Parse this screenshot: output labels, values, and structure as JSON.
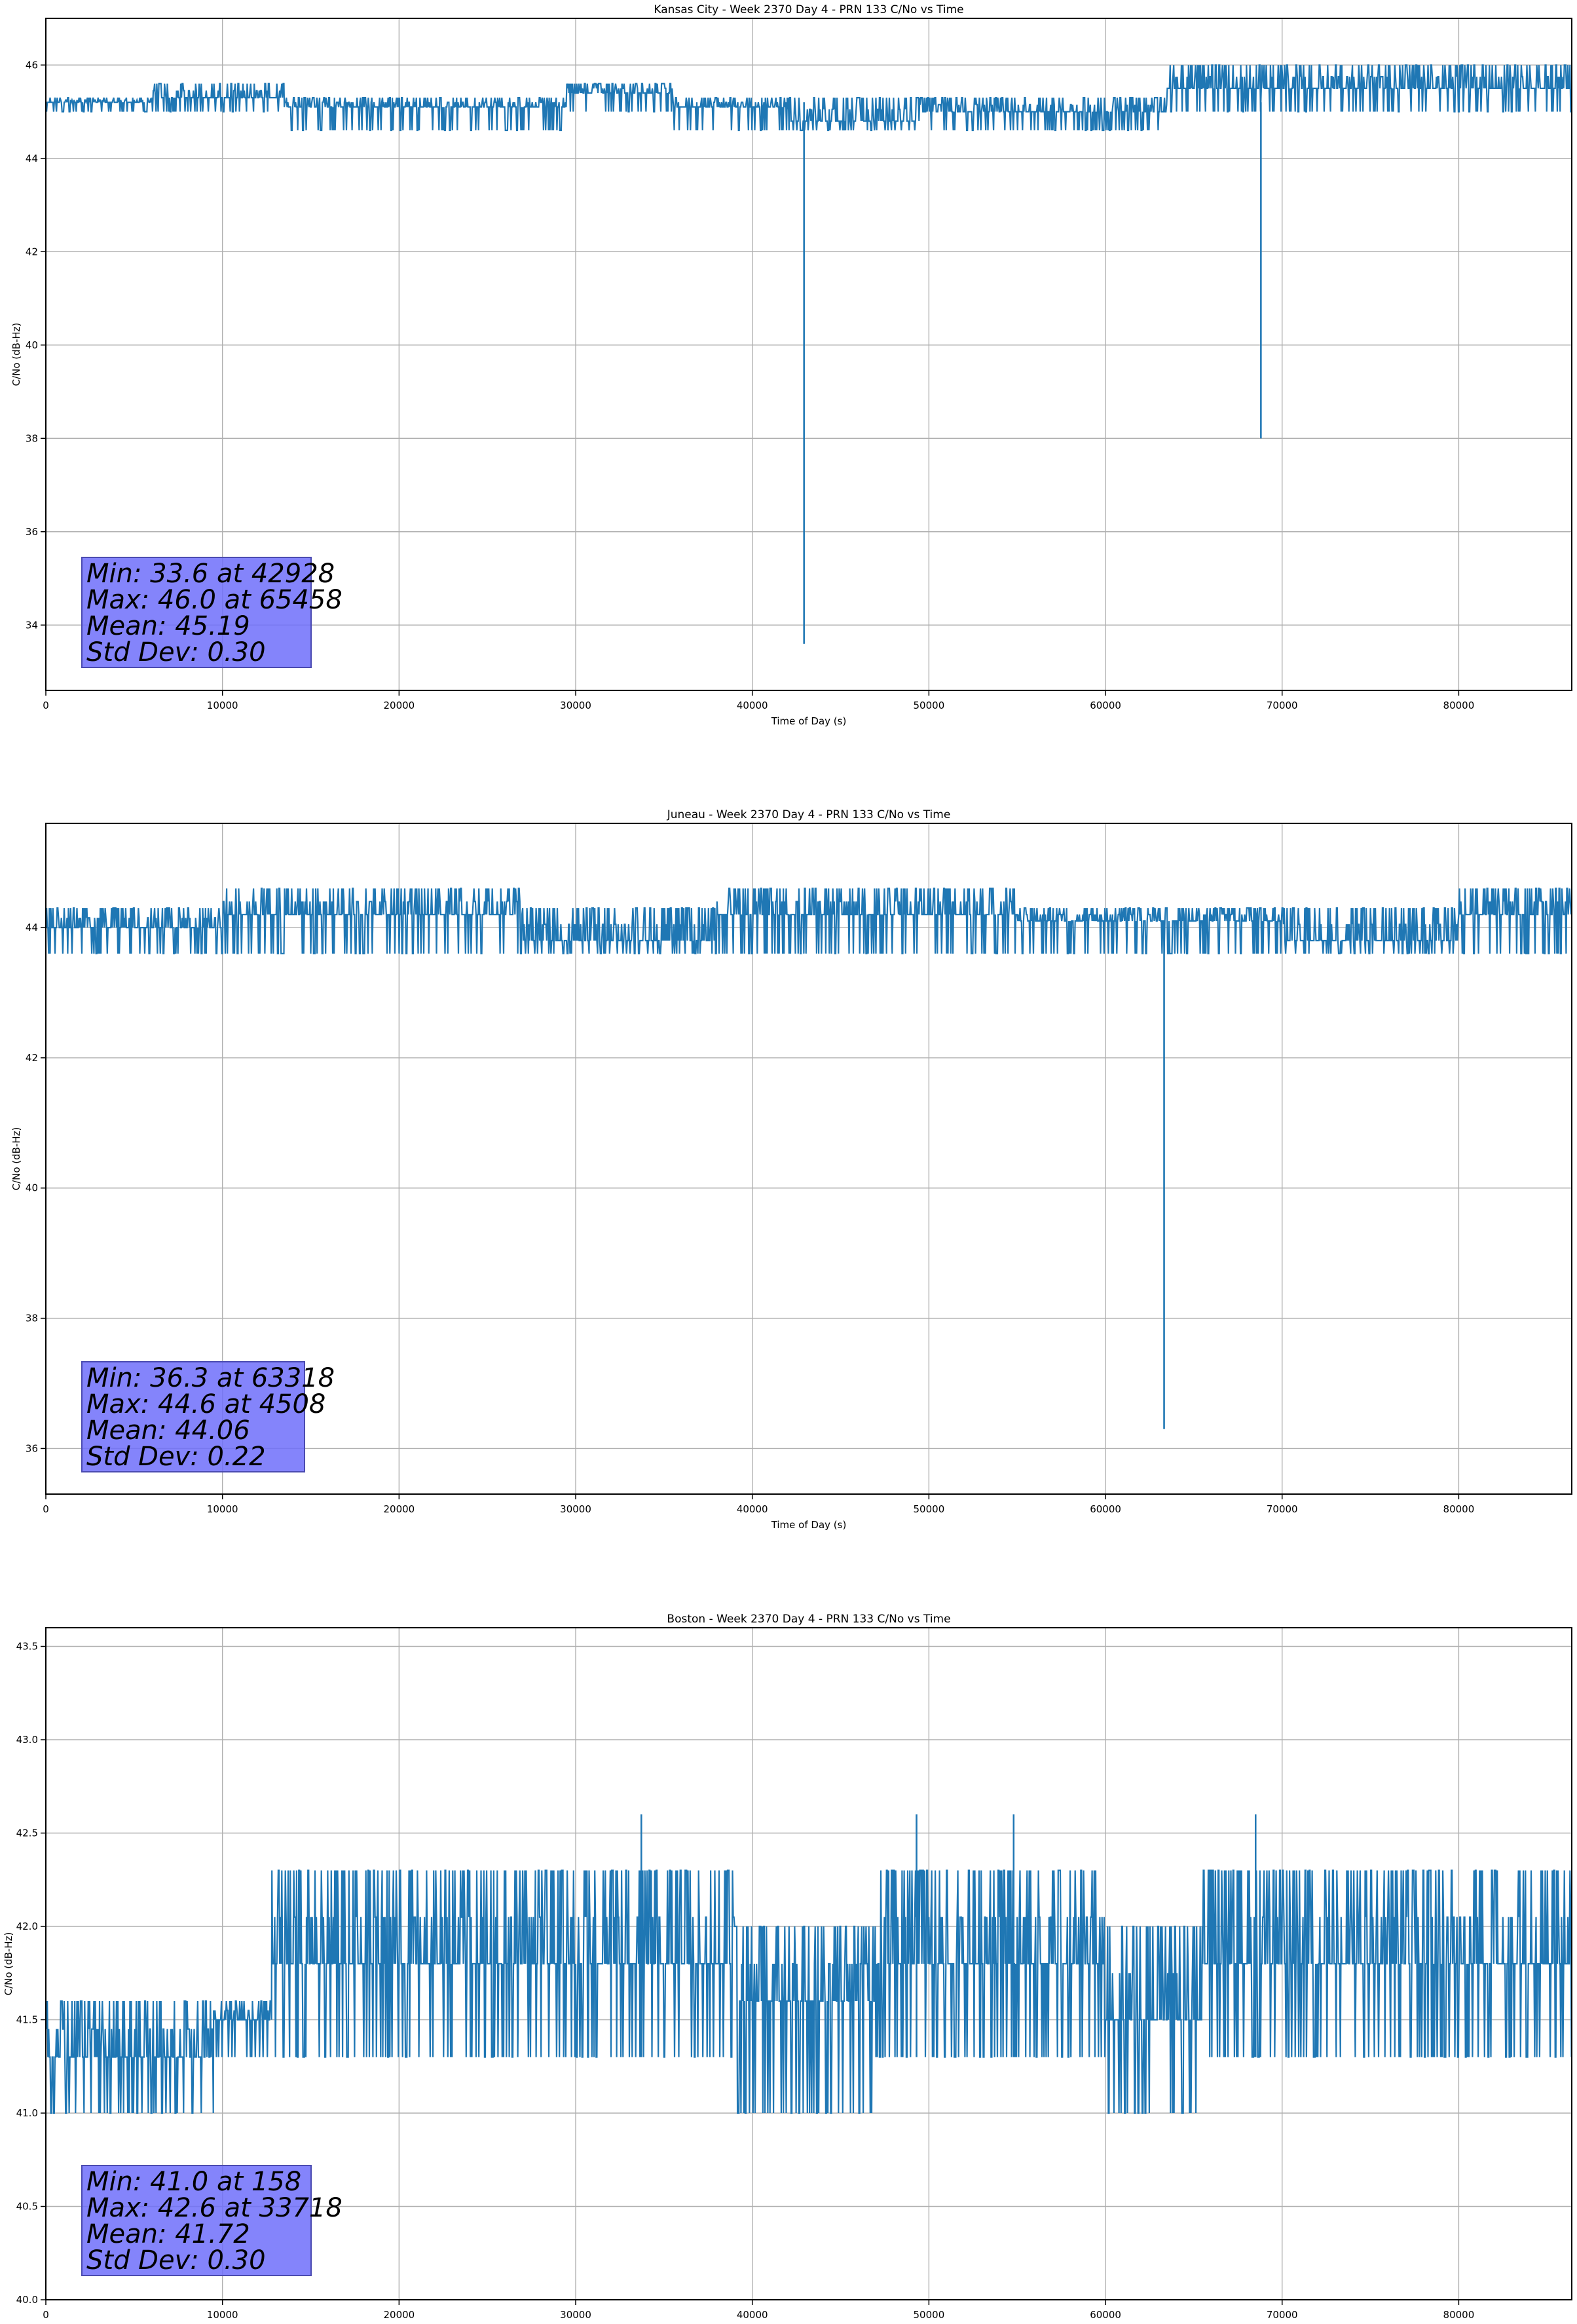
{
  "colors": {
    "line": "#1f77b4",
    "grid": "#b0b0b0",
    "stats_box": "#7b7bf5"
  },
  "chart_data": [
    {
      "type": "line",
      "title": "Kansas City - Week 2370 Day 4 - PRN 133 C/No vs Time",
      "xlabel": "Time of Day (s)",
      "ylabel": "C/No (dB-Hz)",
      "xlim": [
        0,
        86400
      ],
      "ylim": [
        32.6,
        47.0
      ],
      "xticks": [
        0,
        10000,
        20000,
        30000,
        40000,
        50000,
        60000,
        70000,
        80000
      ],
      "yticks": [
        34,
        36,
        38,
        40,
        42,
        44,
        46
      ],
      "grid": true,
      "segments": [
        {
          "x0": 0,
          "x1": 6000,
          "base": 45.2,
          "lo": 45.0,
          "hi": 45.3
        },
        {
          "x0": 6000,
          "x1": 13500,
          "base": 45.3,
          "lo": 45.0,
          "hi": 45.6
        },
        {
          "x0": 13500,
          "x1": 29500,
          "base": 45.1,
          "lo": 44.6,
          "hi": 45.3
        },
        {
          "x0": 29500,
          "x1": 35500,
          "base": 45.4,
          "lo": 45.0,
          "hi": 45.6
        },
        {
          "x0": 35500,
          "x1": 42000,
          "base": 45.1,
          "lo": 44.6,
          "hi": 45.3
        },
        {
          "x0": 42000,
          "x1": 49500,
          "base": 44.8,
          "lo": 44.6,
          "hi": 45.3
        },
        {
          "x0": 49500,
          "x1": 63500,
          "base": 45.0,
          "lo": 44.6,
          "hi": 45.3
        },
        {
          "x0": 63500,
          "x1": 86400,
          "base": 45.5,
          "lo": 45.0,
          "hi": 46.0
        }
      ],
      "spikes": [
        {
          "x": 42928,
          "y": 33.6
        },
        {
          "x": 68800,
          "y": 38.0
        }
      ],
      "stats": {
        "min": "Min: 33.6 at 42928",
        "max": "Max: 46.0 at 65458",
        "mean": "Mean: 45.19",
        "std": "Std Dev: 0.30"
      }
    },
    {
      "type": "line",
      "title": "Juneau - Week 2370 Day 4 - PRN 133 C/No vs Time",
      "xlabel": "Time of Day (s)",
      "ylabel": "C/No (dB-Hz)",
      "xlim": [
        0,
        86400
      ],
      "ylim": [
        35.3,
        45.6
      ],
      "xticks": [
        0,
        10000,
        20000,
        30000,
        40000,
        50000,
        60000,
        70000,
        80000
      ],
      "yticks": [
        36,
        38,
        40,
        42,
        44
      ],
      "grid": true,
      "segments": [
        {
          "x0": 0,
          "x1": 10000,
          "base": 44.0,
          "lo": 43.6,
          "hi": 44.3
        },
        {
          "x0": 10000,
          "x1": 27000,
          "base": 44.2,
          "lo": 43.6,
          "hi": 44.6
        },
        {
          "x0": 27000,
          "x1": 38000,
          "base": 43.8,
          "lo": 43.6,
          "hi": 44.3
        },
        {
          "x0": 38000,
          "x1": 55000,
          "base": 44.2,
          "lo": 43.6,
          "hi": 44.6
        },
        {
          "x0": 55000,
          "x1": 70000,
          "base": 44.1,
          "lo": 43.6,
          "hi": 44.3
        },
        {
          "x0": 70000,
          "x1": 80000,
          "base": 43.8,
          "lo": 43.6,
          "hi": 44.3
        },
        {
          "x0": 80000,
          "x1": 86400,
          "base": 44.2,
          "lo": 43.6,
          "hi": 44.6
        }
      ],
      "spikes": [
        {
          "x": 63318,
          "y": 36.3
        }
      ],
      "stats": {
        "min": "Min: 36.3 at 63318",
        "max": "Max: 44.6 at 4508",
        "mean": "Mean: 44.06",
        "std": "Std Dev: 0.22"
      }
    },
    {
      "type": "line",
      "title": "Boston - Week 2370 Day 4 - PRN 133 C/No vs Time",
      "xlabel": "Time of Day (s)",
      "ylabel": "C/No (dB-Hz)",
      "xlim": [
        0,
        86400
      ],
      "ylim": [
        40.0,
        43.6
      ],
      "xticks": [
        0,
        10000,
        20000,
        30000,
        40000,
        50000,
        60000,
        70000,
        80000
      ],
      "yticks": [
        40.0,
        40.5,
        41.0,
        41.5,
        42.0,
        42.5,
        43.0,
        43.5
      ],
      "grid": true,
      "segments": [
        {
          "x0": 0,
          "x1": 9500,
          "base": 41.3,
          "lo": 41.0,
          "hi": 41.6
        },
        {
          "x0": 9500,
          "x1": 12800,
          "base": 41.5,
          "lo": 41.3,
          "hi": 41.6
        },
        {
          "x0": 12800,
          "x1": 39000,
          "base": 41.8,
          "lo": 41.3,
          "hi": 42.3
        },
        {
          "x0": 39000,
          "x1": 47000,
          "base": 41.6,
          "lo": 41.0,
          "hi": 42.0
        },
        {
          "x0": 47000,
          "x1": 60000,
          "base": 41.8,
          "lo": 41.3,
          "hi": 42.3
        },
        {
          "x0": 60000,
          "x1": 65500,
          "base": 41.5,
          "lo": 41.0,
          "hi": 42.0
        },
        {
          "x0": 65500,
          "x1": 86400,
          "base": 41.8,
          "lo": 41.3,
          "hi": 42.3
        }
      ],
      "spikes": [
        {
          "x": 33718,
          "y": 42.6
        },
        {
          "x": 49300,
          "y": 42.6
        },
        {
          "x": 54800,
          "y": 42.6
        },
        {
          "x": 68500,
          "y": 42.6
        }
      ],
      "stats": {
        "min": "Min: 41.0 at 158",
        "max": "Max: 42.6 at 33718",
        "mean": "Mean: 41.72",
        "std": "Std Dev: 0.30"
      }
    }
  ]
}
